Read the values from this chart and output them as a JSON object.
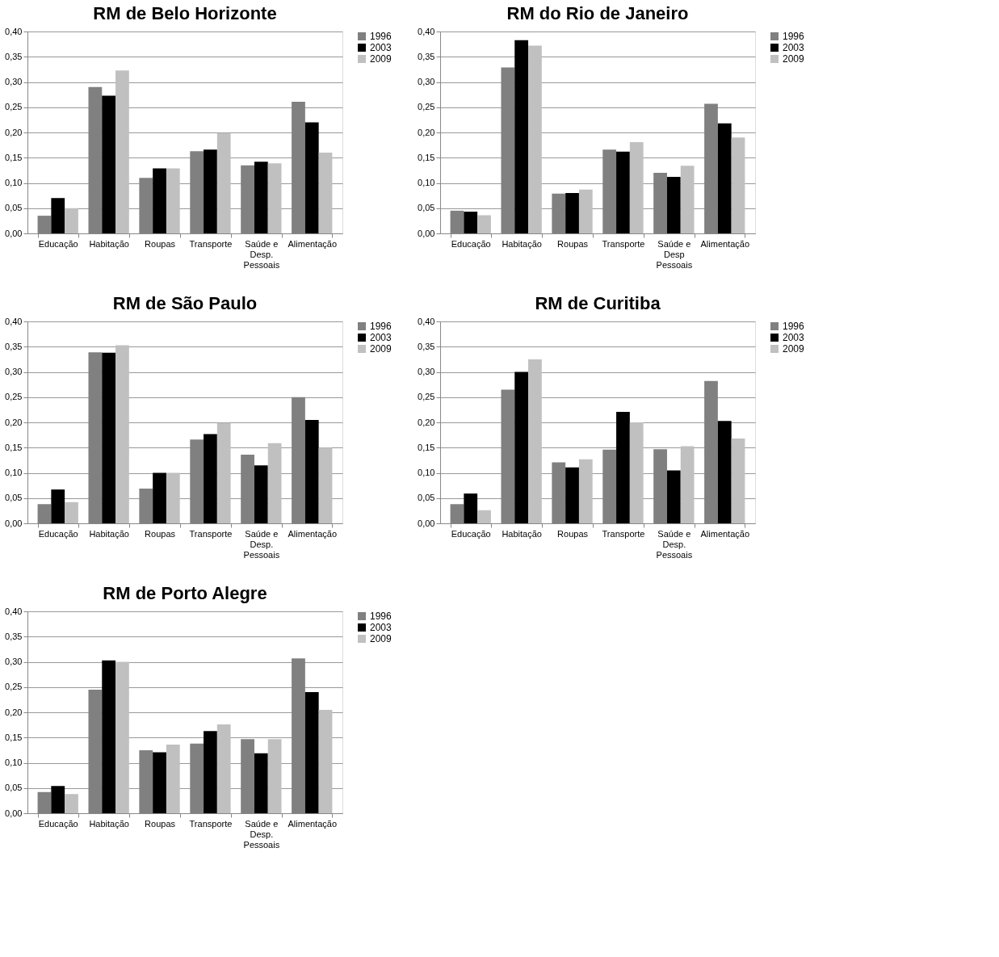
{
  "chart_data": [
    {
      "type": "bar",
      "title": "RM de Belo Horizonte",
      "categories": [
        "Educação",
        "Habitação",
        "Roupas",
        "Transporte",
        "Saúde e Desp. Pessoais",
        "Alimentação"
      ],
      "series": [
        {
          "name": "1996",
          "color": "#808080",
          "values": [
            0.035,
            0.29,
            0.11,
            0.163,
            0.135,
            0.261
          ]
        },
        {
          "name": "2003",
          "color": "#000000",
          "values": [
            0.07,
            0.273,
            0.129,
            0.166,
            0.142,
            0.22
          ]
        },
        {
          "name": "2009",
          "color": "#c0c0c0",
          "values": [
            0.05,
            0.323,
            0.129,
            0.199,
            0.139,
            0.16
          ]
        }
      ],
      "ylim": [
        0,
        0.4
      ],
      "yticks": [
        {
          "value": 0,
          "label": "0,00"
        },
        {
          "value": 0.05,
          "label": "0,05"
        },
        {
          "value": 0.1,
          "label": "0,10"
        },
        {
          "value": 0.15,
          "label": "0,15"
        },
        {
          "value": 0.2,
          "label": "0,20"
        },
        {
          "value": 0.25,
          "label": "0,25"
        },
        {
          "value": 0.3,
          "label": "0,30"
        },
        {
          "value": 0.35,
          "label": "0,35"
        },
        {
          "value": 0.4,
          "label": "0,40"
        }
      ],
      "grid": "y",
      "legend": "right"
    },
    {
      "type": "bar",
      "title": "RM do Rio de Janeiro",
      "categories": [
        "Educação",
        "Habitação",
        "Roupas",
        "Transporte",
        "Saúde e Desp Pessoais",
        "Alimentação"
      ],
      "series": [
        {
          "name": "1996",
          "color": "#808080",
          "values": [
            0.045,
            0.329,
            0.079,
            0.166,
            0.12,
            0.257
          ]
        },
        {
          "name": "2003",
          "color": "#000000",
          "values": [
            0.043,
            0.383,
            0.08,
            0.162,
            0.112,
            0.218
          ]
        },
        {
          "name": "2009",
          "color": "#c0c0c0",
          "values": [
            0.036,
            0.372,
            0.087,
            0.181,
            0.134,
            0.19
          ]
        }
      ],
      "ylim": [
        0,
        0.4
      ],
      "yticks": [
        {
          "value": 0,
          "label": "0,00"
        },
        {
          "value": 0.05,
          "label": "0,05"
        },
        {
          "value": 0.1,
          "label": "0,10"
        },
        {
          "value": 0.15,
          "label": "0,15"
        },
        {
          "value": 0.2,
          "label": "0,20"
        },
        {
          "value": 0.25,
          "label": "0,25"
        },
        {
          "value": 0.3,
          "label": "0,30"
        },
        {
          "value": 0.35,
          "label": "0,35"
        },
        {
          "value": 0.4,
          "label": "0,40"
        }
      ],
      "grid": "y",
      "legend": "right"
    },
    {
      "type": "bar",
      "title": "RM de São Paulo",
      "categories": [
        "Educação",
        "Habitação",
        "Roupas",
        "Transporte",
        "Saúde e Desp. Pessoais",
        "Alimentação"
      ],
      "series": [
        {
          "name": "1996",
          "color": "#808080",
          "values": [
            0.038,
            0.339,
            0.069,
            0.166,
            0.136,
            0.25
          ]
        },
        {
          "name": "2003",
          "color": "#000000",
          "values": [
            0.067,
            0.338,
            0.1,
            0.177,
            0.115,
            0.205
          ]
        },
        {
          "name": "2009",
          "color": "#c0c0c0",
          "values": [
            0.042,
            0.353,
            0.1,
            0.199,
            0.159,
            0.15
          ]
        }
      ],
      "ylim": [
        0,
        0.4
      ],
      "yticks": [
        {
          "value": 0,
          "label": "0,00"
        },
        {
          "value": 0.05,
          "label": "0,05"
        },
        {
          "value": 0.1,
          "label": "0,10"
        },
        {
          "value": 0.15,
          "label": "0,15"
        },
        {
          "value": 0.2,
          "label": "0,20"
        },
        {
          "value": 0.25,
          "label": "0,25"
        },
        {
          "value": 0.3,
          "label": "0,30"
        },
        {
          "value": 0.35,
          "label": "0,35"
        },
        {
          "value": 0.4,
          "label": "0,40"
        }
      ],
      "grid": "y",
      "legend": "right"
    },
    {
      "type": "bar",
      "title": "RM de Curitiba",
      "categories": [
        "Educação",
        "Habitação",
        "Roupas",
        "Transporte",
        "Saúde e Desp. Pessoais",
        "Alimentação"
      ],
      "series": [
        {
          "name": "1996",
          "color": "#808080",
          "values": [
            0.038,
            0.265,
            0.121,
            0.146,
            0.147,
            0.282
          ]
        },
        {
          "name": "2003",
          "color": "#000000",
          "values": [
            0.059,
            0.3,
            0.111,
            0.221,
            0.105,
            0.203
          ]
        },
        {
          "name": "2009",
          "color": "#c0c0c0",
          "values": [
            0.026,
            0.325,
            0.127,
            0.2,
            0.153,
            0.168
          ]
        }
      ],
      "ylim": [
        0,
        0.4
      ],
      "yticks": [
        {
          "value": 0,
          "label": "0,00"
        },
        {
          "value": 0.05,
          "label": "0,05"
        },
        {
          "value": 0.1,
          "label": "0,10"
        },
        {
          "value": 0.15,
          "label": "0,15"
        },
        {
          "value": 0.2,
          "label": "0,20"
        },
        {
          "value": 0.25,
          "label": "0,25"
        },
        {
          "value": 0.3,
          "label": "0,30"
        },
        {
          "value": 0.35,
          "label": "0,35"
        },
        {
          "value": 0.4,
          "label": "0,40"
        }
      ],
      "grid": "y",
      "legend": "right"
    },
    {
      "type": "bar",
      "title": "RM de Porto Alegre",
      "categories": [
        "Educação",
        "Habitação",
        "Roupas",
        "Transporte",
        "Saúde e Desp. Pessoais",
        "Alimentação"
      ],
      "series": [
        {
          "name": "1996",
          "color": "#808080",
          "values": [
            0.042,
            0.245,
            0.125,
            0.138,
            0.147,
            0.307
          ]
        },
        {
          "name": "2003",
          "color": "#000000",
          "values": [
            0.054,
            0.303,
            0.121,
            0.163,
            0.119,
            0.24
          ]
        },
        {
          "name": "2009",
          "color": "#c0c0c0",
          "values": [
            0.038,
            0.3,
            0.136,
            0.176,
            0.147,
            0.205
          ]
        }
      ],
      "ylim": [
        0,
        0.4
      ],
      "yticks": [
        {
          "value": 0,
          "label": "0,00"
        },
        {
          "value": 0.05,
          "label": "0,05"
        },
        {
          "value": 0.1,
          "label": "0,10"
        },
        {
          "value": 0.15,
          "label": "0,15"
        },
        {
          "value": 0.2,
          "label": "0,20"
        },
        {
          "value": 0.25,
          "label": "0,25"
        },
        {
          "value": 0.3,
          "label": "0,30"
        },
        {
          "value": 0.35,
          "label": "0,35"
        },
        {
          "value": 0.4,
          "label": "0,40"
        }
      ],
      "grid": "y",
      "legend": "right"
    }
  ]
}
